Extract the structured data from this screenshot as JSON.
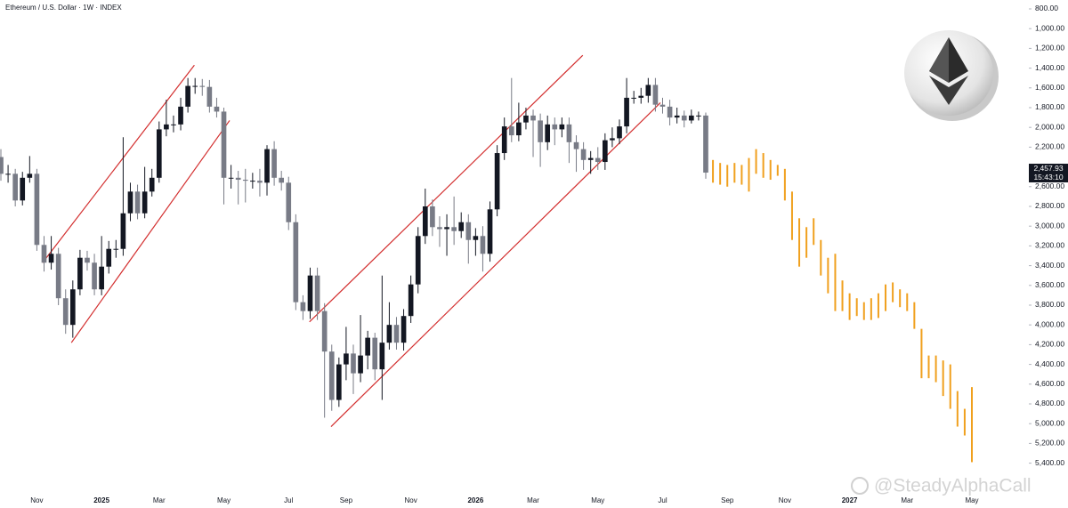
{
  "chart_data": {
    "type": "candlestick",
    "title": "Ethereum / U.S. Dollar · 1W · INDEX",
    "watermark": "@SteadyAlphaCall",
    "inverted": true,
    "grid": false,
    "ylim": [
      710,
      5710
    ],
    "yticks": [
      {
        "value": 800,
        "label": "800.00"
      },
      {
        "value": 1000,
        "label": "1,000.00"
      },
      {
        "value": 1200,
        "label": "1,200.00"
      },
      {
        "value": 1400,
        "label": "1,400.00"
      },
      {
        "value": 1600,
        "label": "1,600.00"
      },
      {
        "value": 1800,
        "label": "1,800.00"
      },
      {
        "value": 2000,
        "label": "2,000.00"
      },
      {
        "value": 2200,
        "label": "2,200.00"
      },
      {
        "value": 2400,
        "label": "2,400.00"
      },
      {
        "value": 2600,
        "label": "2,600.00"
      },
      {
        "value": 2800,
        "label": "2,800.00"
      },
      {
        "value": 3000,
        "label": "3,000.00"
      },
      {
        "value": 3200,
        "label": "3,200.00"
      },
      {
        "value": 3400,
        "label": "3,400.00"
      },
      {
        "value": 3600,
        "label": "3,600.00"
      },
      {
        "value": 3800,
        "label": "3,800.00"
      },
      {
        "value": 4000,
        "label": "4,000.00"
      },
      {
        "value": 4200,
        "label": "4,200.00"
      },
      {
        "value": 4400,
        "label": "4,400.00"
      },
      {
        "value": 4600,
        "label": "4,600.00"
      },
      {
        "value": 4800,
        "label": "4,800.00"
      },
      {
        "value": 5000,
        "label": "5,000.00"
      },
      {
        "value": 5200,
        "label": "5,200.00"
      },
      {
        "value": 5400,
        "label": "5,400.00"
      }
    ],
    "categories": [
      null,
      null,
      null,
      null,
      null,
      "Nov",
      null,
      null,
      null,
      null,
      null,
      null,
      null,
      null,
      "2025",
      null,
      null,
      null,
      null,
      null,
      null,
      null,
      "Mar",
      null,
      null,
      null,
      null,
      null,
      null,
      null,
      null,
      "May",
      null,
      null,
      null,
      null,
      null,
      null,
      null,
      null,
      "Jul",
      null,
      null,
      null,
      null,
      null,
      null,
      null,
      "Sep",
      null,
      null,
      null,
      null,
      null,
      null,
      null,
      null,
      "Nov",
      null,
      null,
      null,
      null,
      null,
      null,
      null,
      null,
      "2026",
      null,
      null,
      null,
      null,
      null,
      null,
      null,
      "Mar",
      null,
      null,
      null,
      null,
      null,
      null,
      null,
      null,
      "May",
      null,
      null,
      null,
      null,
      null,
      null,
      null,
      null,
      "Jul",
      null,
      null,
      null,
      null,
      null,
      null,
      null,
      null,
      "Sep",
      null,
      null,
      null,
      null,
      null,
      null,
      null,
      "Nov",
      null,
      null,
      null,
      null,
      null,
      null,
      null,
      null,
      "2027",
      null,
      null,
      null,
      null,
      null,
      null,
      null,
      "Mar",
      null,
      null,
      null,
      null,
      null,
      null,
      null,
      null,
      "May"
    ],
    "series": [
      {
        "type": "candlestick",
        "up_color": "#787b86",
        "down_color": "#131722",
        "last_close_label": "2,457.93",
        "countdown": "15:43:10",
        "open": [
          2300,
          2470,
          2470,
          2740,
          2510,
          2470,
          3190,
          3370,
          3280,
          3730,
          4000,
          3640,
          3320,
          3370,
          3640,
          3410,
          3230,
          3230,
          2870,
          2650,
          2870,
          2650,
          2510,
          2020,
          1970,
          1970,
          1790,
          1580,
          1580,
          1590,
          1790,
          1840,
          2510,
          2510,
          2530,
          2540,
          2540,
          2560,
          2220,
          2510,
          2560,
          2960,
          3770,
          3860,
          3500,
          3860,
          4270,
          4760,
          4400,
          4290,
          4490,
          4310,
          4130,
          4450,
          4180,
          4000,
          4180,
          3910,
          3590,
          3100,
          2800,
          3010,
          3030,
          3010,
          3050,
          2960,
          3140,
          3100,
          3280,
          2830,
          2260,
          1990,
          2080,
          1950,
          1880,
          1930,
          2150,
          1970,
          2020,
          1970,
          2150,
          2220,
          2330,
          2310,
          2350,
          2130,
          2110,
          1990,
          1700,
          1700,
          1680,
          1570,
          1770,
          1790,
          1900,
          1880,
          1930,
          1880,
          1880,
          null,
          null,
          null,
          null,
          null,
          null,
          null,
          null,
          null,
          null,
          null,
          null,
          null,
          null,
          null,
          null,
          null,
          null,
          null,
          null,
          null,
          null,
          null,
          null,
          null,
          null,
          null,
          null,
          null,
          null,
          null,
          null,
          null,
          null,
          null,
          null,
          null
        ],
        "close": [
          2470,
          2470,
          2740,
          2510,
          2470,
          3190,
          3370,
          3280,
          3730,
          4000,
          3640,
          3320,
          3370,
          3640,
          3410,
          3230,
          3230,
          2870,
          2650,
          2870,
          2650,
          2510,
          2020,
          1970,
          1970,
          1790,
          1580,
          1580,
          1590,
          1790,
          1840,
          2510,
          2510,
          2530,
          2540,
          2540,
          2560,
          2220,
          2510,
          2560,
          2960,
          3770,
          3860,
          3500,
          3860,
          4270,
          4760,
          4400,
          4290,
          4490,
          4310,
          4130,
          4450,
          4180,
          4000,
          4180,
          3910,
          3590,
          3100,
          2800,
          3010,
          3030,
          3010,
          3050,
          2960,
          3140,
          3100,
          3280,
          2830,
          2260,
          1990,
          2080,
          1950,
          1880,
          1930,
          2150,
          1970,
          2020,
          1970,
          2150,
          2220,
          2330,
          2310,
          2350,
          2130,
          2110,
          1990,
          1700,
          1700,
          1680,
          1570,
          1770,
          1790,
          1900,
          1880,
          1930,
          1880,
          1880,
          2457.93,
          null,
          null,
          null,
          null,
          null,
          null,
          null,
          null,
          null,
          null,
          null,
          null,
          null,
          null,
          null,
          null,
          null,
          null,
          null,
          null,
          null,
          null,
          null,
          null,
          null,
          null,
          null,
          null,
          null,
          null,
          null,
          null,
          null,
          null,
          null,
          null,
          null
        ],
        "low": [
          2220,
          2380,
          2420,
          2450,
          2290,
          2420,
          3100,
          3100,
          3220,
          3640,
          3550,
          3240,
          3250,
          3280,
          3100,
          3150,
          3140,
          2100,
          2560,
          2580,
          2400,
          2420,
          1940,
          1720,
          1880,
          1700,
          1500,
          1500,
          1510,
          1520,
          1700,
          1800,
          2380,
          2440,
          2420,
          2460,
          2420,
          2180,
          2140,
          2440,
          2500,
          2880,
          3700,
          3420,
          3420,
          3780,
          4200,
          4330,
          4020,
          4200,
          3900,
          4060,
          4080,
          3500,
          3770,
          3920,
          3840,
          3500,
          3010,
          2620,
          2730,
          2900,
          2880,
          2700,
          2860,
          2880,
          3020,
          3000,
          2750,
          2180,
          1900,
          1500,
          1750,
          1800,
          1820,
          1860,
          1880,
          1900,
          1900,
          1900,
          2080,
          2150,
          2240,
          2200,
          2060,
          2000,
          1920,
          1500,
          1630,
          1600,
          1500,
          1500,
          1700,
          1720,
          1800,
          1830,
          1820,
          1840,
          1850,
          null,
          null,
          null,
          null,
          null,
          null,
          null,
          null,
          null,
          null,
          null,
          null,
          null,
          null,
          null,
          null,
          null,
          null,
          null,
          null,
          null,
          null,
          null,
          null,
          null,
          null,
          null,
          null,
          null,
          null,
          null,
          null,
          null,
          null,
          null,
          null,
          null
        ],
        "high": [
          2540,
          2560,
          2800,
          2790,
          2560,
          3250,
          3460,
          3440,
          3800,
          4090,
          4130,
          3700,
          3450,
          3700,
          3700,
          3480,
          3320,
          3300,
          2950,
          2930,
          2920,
          2700,
          2560,
          2090,
          2050,
          2030,
          1850,
          1660,
          1680,
          1850,
          1900,
          2780,
          2620,
          2780,
          2760,
          2620,
          2700,
          2690,
          2590,
          2640,
          3040,
          3850,
          3950,
          3940,
          3950,
          4940,
          4870,
          4830,
          4560,
          4700,
          4580,
          4450,
          4560,
          4760,
          4250,
          4250,
          4260,
          3980,
          3680,
          3180,
          3100,
          3210,
          3300,
          3190,
          3120,
          3380,
          3300,
          3460,
          3360,
          2900,
          2330,
          2150,
          2140,
          2020,
          2300,
          2400,
          2230,
          2180,
          2100,
          2360,
          2450,
          2430,
          2470,
          2430,
          2430,
          2200,
          2170,
          2060,
          1760,
          1760,
          1750,
          1840,
          1860,
          1980,
          1960,
          2000,
          1960,
          1930,
          2520,
          null,
          null,
          null,
          null,
          null,
          null,
          null,
          null,
          null,
          null,
          null,
          null,
          null,
          null,
          null,
          null,
          null,
          null,
          null,
          null,
          null,
          null,
          null,
          null,
          null,
          null,
          null,
          null,
          null,
          null,
          null,
          null,
          null,
          null,
          null,
          null,
          null
        ]
      },
      {
        "type": "range",
        "color": "#f0a01e",
        "low": [
          null,
          null,
          null,
          null,
          null,
          null,
          null,
          null,
          null,
          null,
          null,
          null,
          null,
          null,
          null,
          null,
          null,
          null,
          null,
          null,
          null,
          null,
          null,
          null,
          null,
          null,
          null,
          null,
          null,
          null,
          null,
          null,
          null,
          null,
          null,
          null,
          null,
          null,
          null,
          null,
          null,
          null,
          null,
          null,
          null,
          null,
          null,
          null,
          null,
          null,
          null,
          null,
          null,
          null,
          null,
          null,
          null,
          null,
          null,
          null,
          null,
          null,
          null,
          null,
          null,
          null,
          null,
          null,
          null,
          null,
          null,
          null,
          null,
          null,
          null,
          null,
          null,
          null,
          null,
          null,
          null,
          null,
          null,
          null,
          null,
          null,
          null,
          null,
          null,
          null,
          null,
          null,
          null,
          null,
          null,
          null,
          null,
          null,
          null,
          2330,
          2360,
          2380,
          2360,
          2380,
          2310,
          2220,
          2260,
          2330,
          2380,
          2420,
          2650,
          2920,
          3010,
          2920,
          3140,
          3320,
          3280,
          3550,
          3680,
          3730,
          3770,
          3730,
          3680,
          3590,
          3570,
          3640,
          3680,
          3770,
          4040,
          4310,
          4310,
          4360,
          4400,
          4670,
          4850,
          4630
        ],
        "high": [
          null,
          null,
          null,
          null,
          null,
          null,
          null,
          null,
          null,
          null,
          null,
          null,
          null,
          null,
          null,
          null,
          null,
          null,
          null,
          null,
          null,
          null,
          null,
          null,
          null,
          null,
          null,
          null,
          null,
          null,
          null,
          null,
          null,
          null,
          null,
          null,
          null,
          null,
          null,
          null,
          null,
          null,
          null,
          null,
          null,
          null,
          null,
          null,
          null,
          null,
          null,
          null,
          null,
          null,
          null,
          null,
          null,
          null,
          null,
          null,
          null,
          null,
          null,
          null,
          null,
          null,
          null,
          null,
          null,
          null,
          null,
          null,
          null,
          null,
          null,
          null,
          null,
          null,
          null,
          null,
          null,
          null,
          null,
          null,
          null,
          null,
          null,
          null,
          null,
          null,
          null,
          null,
          null,
          null,
          null,
          null,
          null,
          null,
          null,
          2560,
          2580,
          2600,
          2560,
          2580,
          2650,
          2470,
          2510,
          2530,
          2490,
          2740,
          3140,
          3410,
          3320,
          3190,
          3500,
          3680,
          3860,
          3860,
          3950,
          3910,
          3950,
          3950,
          3930,
          3860,
          3770,
          3820,
          3860,
          4040,
          4540,
          4540,
          4580,
          4720,
          4850,
          5030,
          5120,
          5390
        ]
      }
    ],
    "trendlines": [
      {
        "color": "#d32f2f",
        "x": [
          5.8,
          26.9
        ],
        "y": [
          3370,
          1370
        ]
      },
      {
        "color": "#d32f2f",
        "x": [
          9.8,
          31.8
        ],
        "y": [
          4180,
          1930
        ]
      },
      {
        "color": "#d32f2f",
        "x": [
          42.9,
          80.9
        ],
        "y": [
          3970,
          1270
        ]
      },
      {
        "color": "#d32f2f",
        "x": [
          45.9,
          91.7
        ],
        "y": [
          5030,
          1750
        ]
      }
    ]
  }
}
